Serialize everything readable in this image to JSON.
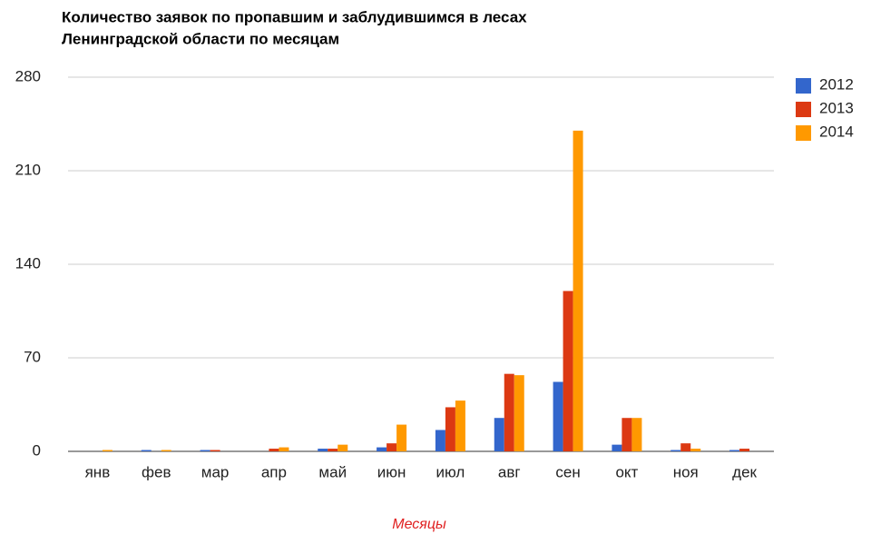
{
  "chart_data": {
    "type": "bar",
    "title": [
      "Количество заявок по пропавшим и заблудившимся в лесах",
      "Ленинградской области по месяцам"
    ],
    "x_label": "Месяцы",
    "categories": [
      "янв",
      "фев",
      "мар",
      "апр",
      "май",
      "июн",
      "июл",
      "авг",
      "сен",
      "окт",
      "ноя",
      "дек"
    ],
    "series": [
      {
        "name": "2012",
        "color": "#3366cc",
        "values": [
          0,
          1,
          1,
          0,
          2,
          3,
          16,
          25,
          52,
          5,
          1,
          1
        ]
      },
      {
        "name": "2013",
        "color": "#dc3912",
        "values": [
          0,
          0,
          1,
          2,
          2,
          6,
          33,
          58,
          120,
          25,
          6,
          2
        ]
      },
      {
        "name": "2014",
        "color": "#ff9900",
        "values": [
          1,
          1,
          0,
          3,
          5,
          20,
          38,
          57,
          240,
          25,
          2,
          0
        ]
      }
    ],
    "ylim": [
      0,
      280
    ],
    "yticks": [
      0,
      70,
      140,
      210,
      280
    ],
    "grid": true,
    "legend": "right"
  }
}
